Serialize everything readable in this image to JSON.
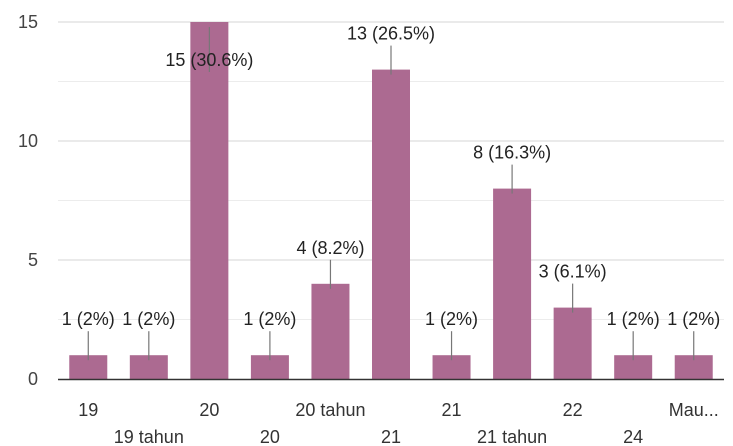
{
  "chart_data": {
    "type": "bar",
    "title": "",
    "xlabel": "",
    "ylabel": "",
    "ylim": [
      0,
      15
    ],
    "yticks": [
      0,
      5,
      10,
      15
    ],
    "grid": true,
    "legend": "none",
    "color": "#ac6a91",
    "categories": [
      "19",
      "19 tahun",
      "20",
      "20",
      "20 tahun",
      "21",
      "21",
      "21 tahun",
      "22",
      "24",
      "Mau..."
    ],
    "values": [
      1,
      1,
      15,
      1,
      4,
      13,
      1,
      8,
      3,
      1,
      1
    ],
    "labels": [
      "1 (2%)",
      "1 (2%)",
      "15 (30.6%)",
      "1 (2%)",
      "4 (8.2%)",
      "13 (26.5%)",
      "1 (2%)",
      "8 (16.3%)",
      "3 (6.1%)",
      "1 (2%)",
      "1 (2%)"
    ]
  }
}
